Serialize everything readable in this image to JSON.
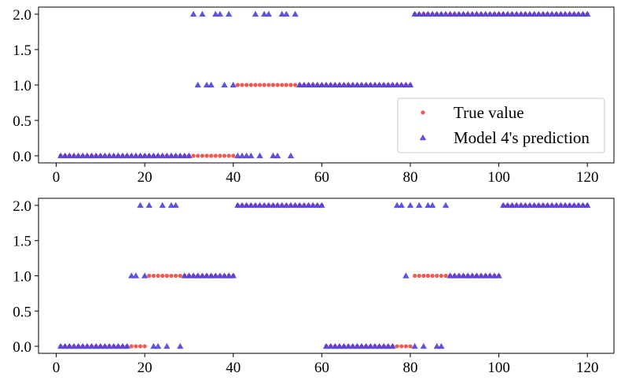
{
  "colors": {
    "true_value": "#f0473f",
    "prediction": "#4b40e0"
  },
  "legend": {
    "items": [
      {
        "label": "True value",
        "marker": "circle-dot",
        "color": "#f0473f"
      },
      {
        "label": "Model 4's prediction",
        "marker": "triangle-up",
        "color": "#4b40e0"
      }
    ]
  },
  "chart_data": [
    {
      "type": "scatter",
      "title": "",
      "xlabel": "",
      "ylabel": "",
      "xlim": [
        -4,
        126
      ],
      "ylim": [
        -0.1,
        2.1
      ],
      "xticks": [
        0,
        20,
        40,
        60,
        80,
        100,
        120
      ],
      "xtick_labels": [
        "0",
        "20",
        "40",
        "60",
        "80",
        "100",
        "120"
      ],
      "yticks": [
        0.0,
        0.5,
        1.0,
        1.5,
        2.0
      ],
      "ytick_labels": [
        "0.0",
        "0.5",
        "1.0",
        "1.5",
        "2.0"
      ],
      "legend_position": "lower-right",
      "series": [
        {
          "name": "True value",
          "marker": "circle",
          "segments": [
            {
              "x_start": 1,
              "x_end": 40,
              "y": 0
            },
            {
              "x_start": 41,
              "x_end": 80,
              "y": 1
            },
            {
              "x_start": 81,
              "x_end": 120,
              "y": 2
            }
          ]
        },
        {
          "name": "Model 4's prediction",
          "marker": "triangle-up",
          "points": [
            [
              1,
              0
            ],
            [
              2,
              0
            ],
            [
              3,
              0
            ],
            [
              4,
              0
            ],
            [
              5,
              0
            ],
            [
              6,
              0
            ],
            [
              7,
              0
            ],
            [
              8,
              0
            ],
            [
              9,
              0
            ],
            [
              10,
              0
            ],
            [
              11,
              0
            ],
            [
              12,
              0
            ],
            [
              13,
              0
            ],
            [
              14,
              0
            ],
            [
              15,
              0
            ],
            [
              16,
              0
            ],
            [
              17,
              0
            ],
            [
              18,
              0
            ],
            [
              19,
              0
            ],
            [
              20,
              0
            ],
            [
              21,
              0
            ],
            [
              22,
              0
            ],
            [
              23,
              0
            ],
            [
              24,
              0
            ],
            [
              25,
              0
            ],
            [
              26,
              0
            ],
            [
              27,
              0
            ],
            [
              28,
              0
            ],
            [
              29,
              0
            ],
            [
              30,
              0
            ],
            [
              31,
              2
            ],
            [
              32,
              1
            ],
            [
              33,
              2
            ],
            [
              34,
              1
            ],
            [
              35,
              1
            ],
            [
              36,
              2
            ],
            [
              37,
              2
            ],
            [
              38,
              1
            ],
            [
              39,
              2
            ],
            [
              40,
              1
            ],
            [
              41,
              0
            ],
            [
              42,
              0
            ],
            [
              43,
              0
            ],
            [
              44,
              0
            ],
            [
              45,
              2
            ],
            [
              46,
              0
            ],
            [
              47,
              2
            ],
            [
              48,
              2
            ],
            [
              49,
              0
            ],
            [
              50,
              0
            ],
            [
              51,
              2
            ],
            [
              52,
              2
            ],
            [
              53,
              0
            ],
            [
              54,
              2
            ],
            [
              55,
              1
            ],
            [
              56,
              1
            ],
            [
              57,
              1
            ],
            [
              58,
              1
            ],
            [
              59,
              1
            ],
            [
              60,
              1
            ],
            [
              61,
              1
            ],
            [
              62,
              1
            ],
            [
              63,
              1
            ],
            [
              64,
              1
            ],
            [
              65,
              1
            ],
            [
              66,
              1
            ],
            [
              67,
              1
            ],
            [
              68,
              1
            ],
            [
              69,
              1
            ],
            [
              70,
              1
            ],
            [
              71,
              1
            ],
            [
              72,
              1
            ],
            [
              73,
              1
            ],
            [
              74,
              1
            ],
            [
              75,
              1
            ],
            [
              76,
              1
            ],
            [
              77,
              1
            ],
            [
              78,
              1
            ],
            [
              79,
              1
            ],
            [
              80,
              1
            ],
            [
              81,
              2
            ],
            [
              82,
              2
            ],
            [
              83,
              2
            ],
            [
              84,
              2
            ],
            [
              85,
              2
            ],
            [
              86,
              2
            ],
            [
              87,
              2
            ],
            [
              88,
              2
            ],
            [
              89,
              2
            ],
            [
              90,
              2
            ],
            [
              91,
              2
            ],
            [
              92,
              2
            ],
            [
              93,
              2
            ],
            [
              94,
              2
            ],
            [
              95,
              2
            ],
            [
              96,
              2
            ],
            [
              97,
              2
            ],
            [
              98,
              2
            ],
            [
              99,
              2
            ],
            [
              100,
              2
            ],
            [
              101,
              2
            ],
            [
              102,
              2
            ],
            [
              103,
              2
            ],
            [
              104,
              2
            ],
            [
              105,
              2
            ],
            [
              106,
              2
            ],
            [
              107,
              2
            ],
            [
              108,
              2
            ],
            [
              109,
              2
            ],
            [
              110,
              2
            ],
            [
              111,
              2
            ],
            [
              112,
              2
            ],
            [
              113,
              2
            ],
            [
              114,
              2
            ],
            [
              115,
              2
            ],
            [
              116,
              2
            ],
            [
              117,
              2
            ],
            [
              118,
              2
            ],
            [
              119,
              2
            ],
            [
              120,
              2
            ]
          ]
        }
      ]
    },
    {
      "type": "scatter",
      "title": "",
      "xlabel": "",
      "ylabel": "",
      "xlim": [
        -4,
        126
      ],
      "ylim": [
        -0.1,
        2.1
      ],
      "xticks": [
        0,
        20,
        40,
        60,
        80,
        100,
        120
      ],
      "xtick_labels": [
        "0",
        "20",
        "40",
        "60",
        "80",
        "100",
        "120"
      ],
      "yticks": [
        0.0,
        0.5,
        1.0,
        1.5,
        2.0
      ],
      "ytick_labels": [
        "0.0",
        "0.5",
        "1.0",
        "1.5",
        "2.0"
      ],
      "legend_position": "none",
      "series": [
        {
          "name": "True value",
          "marker": "circle",
          "segments": [
            {
              "x_start": 1,
              "x_end": 20,
              "y": 0
            },
            {
              "x_start": 21,
              "x_end": 40,
              "y": 1
            },
            {
              "x_start": 41,
              "x_end": 60,
              "y": 2
            },
            {
              "x_start": 61,
              "x_end": 80,
              "y": 0
            },
            {
              "x_start": 81,
              "x_end": 100,
              "y": 1
            },
            {
              "x_start": 101,
              "x_end": 120,
              "y": 2
            }
          ]
        },
        {
          "name": "Model 4's prediction",
          "marker": "triangle-up",
          "points": [
            [
              1,
              0
            ],
            [
              2,
              0
            ],
            [
              3,
              0
            ],
            [
              4,
              0
            ],
            [
              5,
              0
            ],
            [
              6,
              0
            ],
            [
              7,
              0
            ],
            [
              8,
              0
            ],
            [
              9,
              0
            ],
            [
              10,
              0
            ],
            [
              11,
              0
            ],
            [
              12,
              0
            ],
            [
              13,
              0
            ],
            [
              14,
              0
            ],
            [
              15,
              0
            ],
            [
              16,
              0
            ],
            [
              17,
              1
            ],
            [
              18,
              1
            ],
            [
              19,
              2
            ],
            [
              20,
              1
            ],
            [
              21,
              2
            ],
            [
              22,
              0
            ],
            [
              23,
              0
            ],
            [
              24,
              2
            ],
            [
              25,
              0
            ],
            [
              26,
              2
            ],
            [
              27,
              2
            ],
            [
              28,
              0
            ],
            [
              29,
              1
            ],
            [
              30,
              1
            ],
            [
              31,
              1
            ],
            [
              32,
              1
            ],
            [
              33,
              1
            ],
            [
              34,
              1
            ],
            [
              35,
              1
            ],
            [
              36,
              1
            ],
            [
              37,
              1
            ],
            [
              38,
              1
            ],
            [
              39,
              1
            ],
            [
              40,
              1
            ],
            [
              41,
              2
            ],
            [
              42,
              2
            ],
            [
              43,
              2
            ],
            [
              44,
              2
            ],
            [
              45,
              2
            ],
            [
              46,
              2
            ],
            [
              47,
              2
            ],
            [
              48,
              2
            ],
            [
              49,
              2
            ],
            [
              50,
              2
            ],
            [
              51,
              2
            ],
            [
              52,
              2
            ],
            [
              53,
              2
            ],
            [
              54,
              2
            ],
            [
              55,
              2
            ],
            [
              56,
              2
            ],
            [
              57,
              2
            ],
            [
              58,
              2
            ],
            [
              59,
              2
            ],
            [
              60,
              2
            ],
            [
              61,
              0
            ],
            [
              62,
              0
            ],
            [
              63,
              0
            ],
            [
              64,
              0
            ],
            [
              65,
              0
            ],
            [
              66,
              0
            ],
            [
              67,
              0
            ],
            [
              68,
              0
            ],
            [
              69,
              0
            ],
            [
              70,
              0
            ],
            [
              71,
              0
            ],
            [
              72,
              0
            ],
            [
              73,
              0
            ],
            [
              74,
              0
            ],
            [
              75,
              0
            ],
            [
              76,
              0
            ],
            [
              77,
              2
            ],
            [
              78,
              2
            ],
            [
              79,
              1
            ],
            [
              80,
              2
            ],
            [
              81,
              0
            ],
            [
              82,
              2
            ],
            [
              83,
              0
            ],
            [
              84,
              2
            ],
            [
              85,
              2
            ],
            [
              86,
              0
            ],
            [
              87,
              0
            ],
            [
              88,
              2
            ],
            [
              89,
              1
            ],
            [
              90,
              1
            ],
            [
              91,
              1
            ],
            [
              92,
              1
            ],
            [
              93,
              1
            ],
            [
              94,
              1
            ],
            [
              95,
              1
            ],
            [
              96,
              1
            ],
            [
              97,
              1
            ],
            [
              98,
              1
            ],
            [
              99,
              1
            ],
            [
              100,
              1
            ],
            [
              101,
              2
            ],
            [
              102,
              2
            ],
            [
              103,
              2
            ],
            [
              104,
              2
            ],
            [
              105,
              2
            ],
            [
              106,
              2
            ],
            [
              107,
              2
            ],
            [
              108,
              2
            ],
            [
              109,
              2
            ],
            [
              110,
              2
            ],
            [
              111,
              2
            ],
            [
              112,
              2
            ],
            [
              113,
              2
            ],
            [
              114,
              2
            ],
            [
              115,
              2
            ],
            [
              116,
              2
            ],
            [
              117,
              2
            ],
            [
              118,
              2
            ],
            [
              119,
              2
            ],
            [
              120,
              2
            ]
          ]
        }
      ]
    }
  ]
}
